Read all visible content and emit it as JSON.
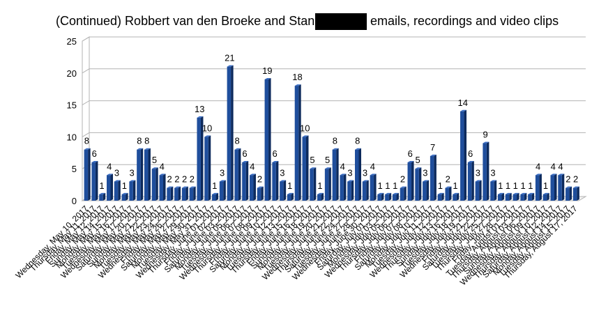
{
  "chart_data": {
    "type": "bar3d",
    "title_start": "(Continued) Robbert van den Broeke and Stan",
    "title_end": "emails, recordings and video clips",
    "color": "#1f4e9c",
    "ylim": [
      0,
      25
    ],
    "yticks": [
      0,
      5,
      10,
      15,
      20,
      25
    ],
    "grid": true,
    "categories": [
      "Wednesday, May 10, 2017",
      "Thursday, May 11, 2017",
      "Friday, May 12, 2017",
      "Sunday, May 14, 2017",
      "Monday, May 15, 2017",
      "Tuesday, May 16, 2017",
      "Wednesday, May 17, 2017",
      "Saturday, May 20, 2017",
      "Sunday, May 21, 2017",
      "Monday, May 22, 2017",
      "Tuesday, May 23, 2017",
      "Wednesday, May 24, 2017",
      "Friday, May 26, 2017",
      "Saturday, May 27, 2017",
      "Monday, May 29, 2017",
      "Tuesday, May 30, 2017",
      "Wednesday, May 31, 2017",
      "Thursday, June 01, 2017",
      "Friday, June 02, 2017",
      "Saturday, June 03, 2017",
      "Monday, June 05, 2017",
      "Tuesday, June 06, 2017",
      "Wednesday, June 07, 2017",
      "Thursday, June 08, 2017",
      "Friday, June 09, 2017",
      "Saturday, June 10, 2017",
      "Monday, June 12, 2017",
      "Tuesday, June 13, 2017",
      "Thursday, June 15, 2017",
      "Friday, June 16, 2017",
      "Sunday, June 18, 2017",
      "Monday, June 19, 2017",
      "Tuesday, June 20, 2017",
      "Wednesday, June 21, 2017",
      "Thursday, June 22, 2017",
      "Saturday, June 24, 2017",
      "Tuesday, June 27, 2017",
      "Wednesday, June 28, 2017",
      "Friday, June 30, 2017",
      "Saturday, July 01, 2017",
      "Monday, July 03, 2017",
      "Wednesday, July 05, 2017",
      "Thursday, July 06, 2017",
      "Friday, July 07, 2017",
      "Saturday, July 08, 2017",
      "Monday, July 10, 2017",
      "Tuesday, July 11, 2017",
      "Wednesday, July 12, 2017",
      "Thursday, July 13, 2017",
      "Sunday, July 16, 2017",
      "Tuesday, July 18, 2017",
      "Wednesday, July 19, 2017",
      "Friday, July 21, 2017",
      "Saturday, July 22, 2017",
      "Tuesday, July 25, 2017",
      "Thursday, July 27, 2017",
      "Friday, July 28, 2017",
      "Tuesday, August 01, 2017",
      "Thursday, August 03, 2017",
      "Sunday, August 06, 2017",
      "Wednesday, August 09, 2017",
      "Thursday, August 10, 2017",
      "Saturday, August 12, 2017",
      "Monday, August 14, 2017",
      "Tuesday, August 15, 2017",
      "Thursday, August 17, 2017"
    ],
    "values": [
      8,
      6,
      1,
      4,
      3,
      1,
      3,
      8,
      8,
      5,
      4,
      2,
      2,
      2,
      2,
      13,
      10,
      1,
      3,
      21,
      8,
      6,
      4,
      2,
      19,
      6,
      3,
      1,
      18,
      10,
      5,
      1,
      5,
      8,
      4,
      3,
      8,
      3,
      4,
      1,
      1,
      1,
      2,
      6,
      5,
      3,
      7,
      1,
      2,
      1,
      14,
      6,
      3,
      9,
      3,
      1,
      1,
      1,
      1,
      1,
      4,
      1,
      4,
      4,
      2,
      2
    ]
  }
}
